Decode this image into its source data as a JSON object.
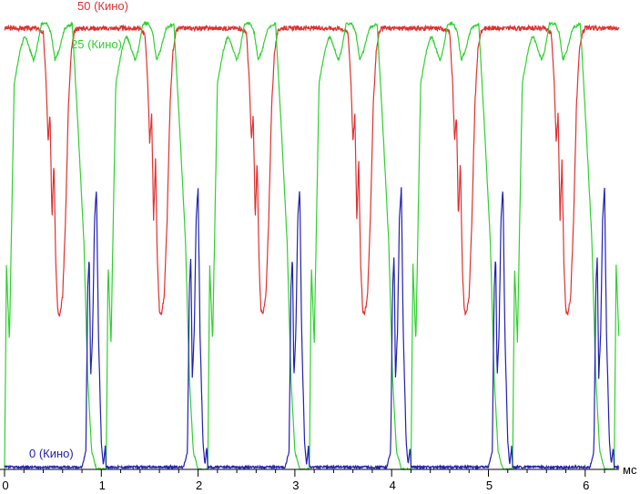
{
  "chart_data": {
    "type": "line",
    "title": "",
    "xlabel": "",
    "ylabel": "",
    "x_unit": "мс",
    "xlim": [
      0,
      6.35
    ],
    "ylim": [
      0,
      100
    ],
    "x_ticks": [
      "0",
      "1",
      "2",
      "3",
      "4",
      "5",
      "6"
    ],
    "grid": false,
    "legend": "inline labels",
    "period_ms": 1.05,
    "series": [
      {
        "name": "50 (Кино)",
        "color": "#e03030",
        "profile_x": [
          0,
          0.33,
          0.4,
          0.43,
          0.45,
          0.47,
          0.49,
          0.51,
          0.53,
          0.55,
          0.57,
          0.6,
          0.63,
          0.66,
          0.69,
          0.72,
          0.75,
          1.05
        ],
        "profile_y": [
          97,
          97,
          96,
          85,
          72,
          78,
          55,
          68,
          45,
          35,
          34,
          38,
          55,
          80,
          92,
          96,
          97,
          97
        ]
      },
      {
        "name": "25 (Кино)",
        "color": "#30d030",
        "profile_x": [
          0,
          0.02,
          0.05,
          0.1,
          0.16,
          0.2,
          0.22,
          0.25,
          0.3,
          0.33,
          0.38,
          0.44,
          0.48,
          0.52,
          0.56,
          0.62,
          0.7,
          0.76,
          0.82,
          0.86,
          0.9,
          0.95,
          1.05
        ],
        "profile_y": [
          0,
          45,
          28,
          85,
          92,
          95,
          95,
          93,
          90,
          92,
          98,
          98,
          96,
          90,
          92,
          97,
          98,
          75,
          50,
          20,
          4,
          0,
          0
        ]
      },
      {
        "name": "0 (Кино)",
        "color": "#2020b0",
        "profile_x": [
          0,
          0.8,
          0.84,
          0.86,
          0.875,
          0.89,
          0.91,
          0.93,
          0.95,
          0.97,
          1.0,
          1.02,
          1.04,
          1.06,
          1.08,
          1.1,
          1.12,
          1.14,
          1.05
        ],
        "profile_y": [
          0.5,
          0.5,
          4,
          40,
          47,
          20,
          30,
          55,
          62,
          30,
          6,
          1,
          5,
          3,
          1,
          0.5,
          0.5,
          0.5,
          0.5
        ]
      }
    ]
  }
}
